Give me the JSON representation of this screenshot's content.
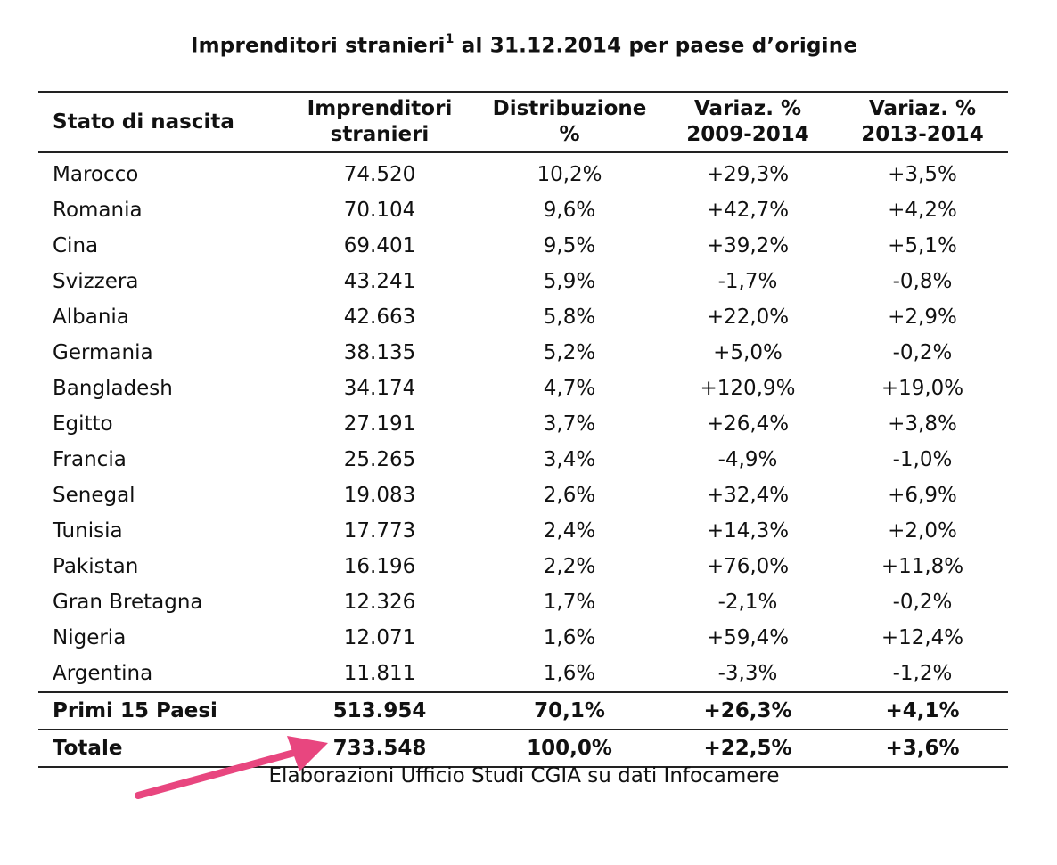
{
  "title": {
    "main": "Imprenditori stranieri",
    "footnote_mark": "1",
    "rest": " al 31.12.2014 per paese d’origine"
  },
  "columns": [
    {
      "line1": "Stato di nascita",
      "line2": ""
    },
    {
      "line1": "Imprenditori",
      "line2": "stranieri"
    },
    {
      "line1": "Distribuzione",
      "line2": "%"
    },
    {
      "line1": "Variaz. %",
      "line2": "2009-2014"
    },
    {
      "line1": "Variaz. %",
      "line2": "2013-2014"
    }
  ],
  "rows": [
    [
      "Marocco",
      "74.520",
      "10,2%",
      "+29,3%",
      "+3,5%"
    ],
    [
      "Romania",
      "70.104",
      "9,6%",
      "+42,7%",
      "+4,2%"
    ],
    [
      "Cina",
      "69.401",
      "9,5%",
      "+39,2%",
      "+5,1%"
    ],
    [
      "Svizzera",
      "43.241",
      "5,9%",
      "-1,7%",
      "-0,8%"
    ],
    [
      "Albania",
      "42.663",
      "5,8%",
      "+22,0%",
      "+2,9%"
    ],
    [
      "Germania",
      "38.135",
      "5,2%",
      "+5,0%",
      "-0,2%"
    ],
    [
      "Bangladesh",
      "34.174",
      "4,7%",
      "+120,9%",
      "+19,0%"
    ],
    [
      "Egitto",
      "27.191",
      "3,7%",
      "+26,4%",
      "+3,8%"
    ],
    [
      "Francia",
      "25.265",
      "3,4%",
      "-4,9%",
      "-1,0%"
    ],
    [
      "Senegal",
      "19.083",
      "2,6%",
      "+32,4%",
      "+6,9%"
    ],
    [
      "Tunisia",
      "17.773",
      "2,4%",
      "+14,3%",
      "+2,0%"
    ],
    [
      "Pakistan",
      "16.196",
      "2,2%",
      "+76,0%",
      "+11,8%"
    ],
    [
      "Gran Bretagna",
      "12.326",
      "1,7%",
      "-2,1%",
      "-0,2%"
    ],
    [
      "Nigeria",
      "12.071",
      "1,6%",
      "+59,4%",
      "+12,4%"
    ],
    [
      "Argentina",
      "11.811",
      "1,6%",
      "-3,3%",
      "-1,2%"
    ]
  ],
  "summary": {
    "primi15": [
      "Primi 15 Paesi",
      "513.954",
      "70,1%",
      "+26,3%",
      "+4,1%"
    ],
    "totale": [
      "Totale",
      "733.548",
      "100,0%",
      "+22,5%",
      "+3,6%"
    ]
  },
  "source": "Elaborazioni Ufficio Studi CGIA su dati Infocamere",
  "colors": {
    "arrow": "#e8467f",
    "rule": "#222222",
    "text": "#111111"
  }
}
